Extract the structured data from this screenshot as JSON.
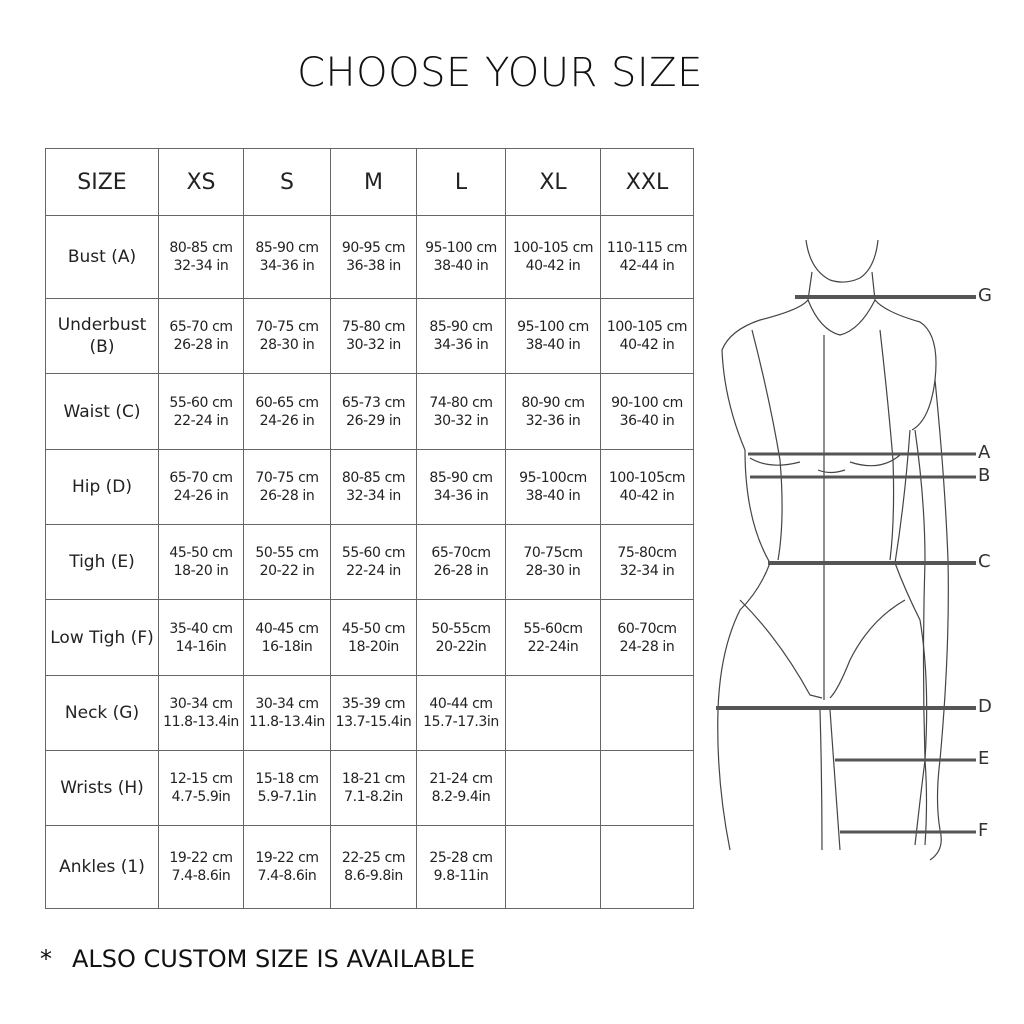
{
  "title": "CHOOSE YOUR SIZE",
  "table": {
    "header": [
      "SIZE",
      "XS",
      "S",
      "M",
      "L",
      "XL",
      "XXL"
    ],
    "rows": [
      {
        "label": "Bust (A)",
        "cells": [
          [
            "80-85 cm",
            "32-34 in"
          ],
          [
            "85-90 cm",
            "34-36 in"
          ],
          [
            "90-95 cm",
            "36-38 in"
          ],
          [
            "95-100 cm",
            "38-40 in"
          ],
          [
            "100-105 cm",
            "40-42 in"
          ],
          [
            "110-115 cm",
            "42-44 in"
          ]
        ]
      },
      {
        "label": "Underbust (B)",
        "cells": [
          [
            "65-70 cm",
            "26-28 in"
          ],
          [
            "70-75 cm",
            "28-30 in"
          ],
          [
            "75-80 cm",
            "30-32 in"
          ],
          [
            "85-90 cm",
            "34-36 in"
          ],
          [
            "95-100 cm",
            "38-40 in"
          ],
          [
            "100-105 cm",
            "40-42 in"
          ]
        ]
      },
      {
        "label": "Waist (C)",
        "cells": [
          [
            "55-60 cm",
            "22-24 in"
          ],
          [
            "60-65 cm",
            "24-26 in"
          ],
          [
            "65-73 cm",
            "26-29 in"
          ],
          [
            "74-80 cm",
            "30-32 in"
          ],
          [
            "80-90 cm",
            "32-36 in"
          ],
          [
            "90-100 cm",
            "36-40 in"
          ]
        ]
      },
      {
        "label": "Hip (D)",
        "cells": [
          [
            "65-70 cm",
            "24-26 in"
          ],
          [
            "70-75 cm",
            "26-28 in"
          ],
          [
            "80-85 cm",
            "32-34 in"
          ],
          [
            "85-90 cm",
            "34-36 in"
          ],
          [
            "95-100cm",
            "38-40 in"
          ],
          [
            "100-105cm",
            "40-42 in"
          ]
        ]
      },
      {
        "label": "Tigh (E)",
        "cells": [
          [
            "45-50 cm",
            "18-20 in"
          ],
          [
            "50-55 cm",
            "20-22 in"
          ],
          [
            "55-60 cm",
            "22-24 in"
          ],
          [
            "65-70cm",
            "26-28 in"
          ],
          [
            "70-75cm",
            "28-30 in"
          ],
          [
            "75-80cm",
            "32-34 in"
          ]
        ]
      },
      {
        "label": "Low Tigh (F)",
        "cells": [
          [
            "35-40 cm",
            "14-16in"
          ],
          [
            "40-45 cm",
            "16-18in"
          ],
          [
            "45-50 cm",
            "18-20in"
          ],
          [
            "50-55cm",
            "20-22in"
          ],
          [
            "55-60cm",
            "22-24in"
          ],
          [
            "60-70cm",
            "24-28 in"
          ]
        ]
      },
      {
        "label": "Neck (G)",
        "cells": [
          [
            "30-34 cm",
            "11.8-13.4in"
          ],
          [
            "30-34 cm",
            "11.8-13.4in"
          ],
          [
            "35-39 cm",
            "13.7-15.4in"
          ],
          [
            "40-44 cm",
            "15.7-17.3in"
          ],
          [
            "",
            ""
          ],
          [
            "",
            ""
          ]
        ]
      },
      {
        "label": "Wrists (H)",
        "cells": [
          [
            "12-15 cm",
            "4.7-5.9in"
          ],
          [
            "15-18 cm",
            "5.9-7.1in"
          ],
          [
            "18-21 cm",
            "7.1-8.2in"
          ],
          [
            "21-24 cm",
            "8.2-9.4in"
          ],
          [
            "",
            ""
          ],
          [
            "",
            ""
          ]
        ]
      },
      {
        "label": "Ankles (1)",
        "cells": [
          [
            "19-22 cm",
            "7.4-8.6in"
          ],
          [
            "19-22 cm",
            "7.4-8.6in"
          ],
          [
            "22-25 cm",
            "8.6-9.8in"
          ],
          [
            "25-28 cm",
            "9.8-11in"
          ],
          [
            "",
            ""
          ],
          [
            "",
            ""
          ]
        ]
      }
    ]
  },
  "figure": {
    "measure_labels": [
      "G",
      "A",
      "B",
      "C",
      "D",
      "E",
      "F"
    ]
  },
  "note": {
    "marker": "*",
    "text": "ALSO CUSTOM SIZE IS AVAILABLE"
  }
}
